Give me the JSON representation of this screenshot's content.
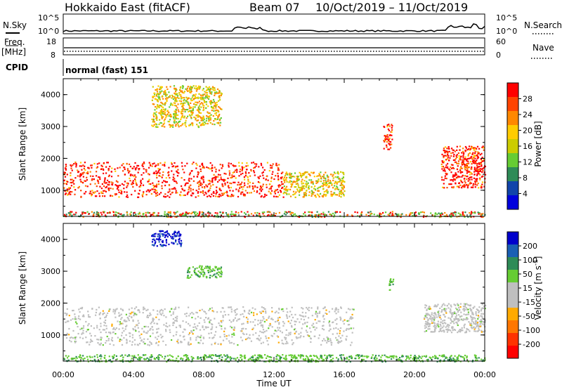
{
  "header": {
    "station": "Hokkaido East (fitACF)",
    "beam": "Beam 07",
    "dates": "10/Oct/2019 – 11/Oct/2019"
  },
  "status": {
    "nsky_label": "N.Sky",
    "nsky_ticks": [
      "10^5",
      "10^0"
    ],
    "nsearch_label": "N.Search",
    "nsearch_ticks": [
      "10^5",
      "10^0"
    ],
    "freq_label": "Freq.",
    "freq_unit": "[MHz]",
    "freq_ticks": [
      "18",
      "8"
    ],
    "nave_label": "Nave",
    "nave_ticks": [
      "60",
      "0"
    ],
    "cpid_label": "CPID",
    "cpid_value": "normal (fast) 151"
  },
  "colors": {
    "power_scale": [
      "#0000dd",
      "#1144aa",
      "#2e8b57",
      "#66cc33",
      "#cccc00",
      "#ffcc00",
      "#ff8800",
      "#ff4400",
      "#ff0000"
    ],
    "velocity_scale": [
      "#0000cc",
      "#1a5fb4",
      "#2e8b57",
      "#66cc33",
      "#bfbfbf",
      "#bfbfbf",
      "#ffaa00",
      "#ff7700",
      "#ff3300",
      "#ff0000"
    ]
  },
  "chart_data": [
    {
      "type": "heatmap",
      "title": "",
      "xlabel": "",
      "ylabel": "Slant Range [km]",
      "colorbar_label": "Power [dB]",
      "colorbar_ticks": [
        "28",
        "24",
        "20",
        "16",
        "12",
        "8",
        "4"
      ],
      "x_ticks": [
        "00:00",
        "04:00",
        "08:00",
        "12:00",
        "16:00",
        "20:00",
        "00:00"
      ],
      "y_ticks": [
        "4000",
        "3000",
        "2000",
        "1000"
      ],
      "xlim_hours": [
        0,
        24
      ],
      "ylim_km": [
        180,
        4500
      ],
      "regions": [
        {
          "x": [
            0,
            12.5
          ],
          "y": [
            800,
            1900
          ],
          "level": "high"
        },
        {
          "x": [
            12.5,
            16.0
          ],
          "y": [
            800,
            1600
          ],
          "level": "mid"
        },
        {
          "x": [
            21.5,
            24.0
          ],
          "y": [
            1100,
            2400
          ],
          "level": "high"
        },
        {
          "x": [
            5.0,
            9.0
          ],
          "y": [
            3000,
            4300
          ],
          "level": "mid"
        },
        {
          "x": [
            18.2,
            18.7
          ],
          "y": [
            2300,
            3100
          ],
          "level": "high"
        },
        {
          "x": [
            0,
            24
          ],
          "y": [
            180,
            350
          ],
          "level": "low"
        }
      ]
    },
    {
      "type": "heatmap",
      "title": "",
      "xlabel": "Time UT",
      "ylabel": "Slant Range [km]",
      "colorbar_label": "Velocity [m s^-1]",
      "colorbar_ticks": [
        "200",
        "100",
        "50",
        "15",
        "-15",
        "-50",
        "-100",
        "-200"
      ],
      "x_ticks": [
        "00:00",
        "04:00",
        "08:00",
        "12:00",
        "16:00",
        "20:00",
        "00:00"
      ],
      "y_ticks": [
        "4000",
        "3000",
        "2000",
        "1000"
      ],
      "xlim_hours": [
        0,
        24
      ],
      "ylim_km": [
        180,
        4500
      ],
      "regions": [
        {
          "x": [
            0,
            16.5
          ],
          "y": [
            700,
            1900
          ],
          "velocity": 0
        },
        {
          "x": [
            20.5,
            24
          ],
          "y": [
            1100,
            2000
          ],
          "velocity": 0
        },
        {
          "x": [
            5.0,
            6.7
          ],
          "y": [
            3800,
            4300
          ],
          "velocity": 200
        },
        {
          "x": [
            7.0,
            9.0
          ],
          "y": [
            2800,
            3200
          ],
          "velocity": 40
        },
        {
          "x": [
            18.5,
            18.8
          ],
          "y": [
            2400,
            2800
          ],
          "velocity": 40
        },
        {
          "x": [
            0,
            24
          ],
          "y": [
            180,
            400
          ],
          "velocity": 30
        }
      ]
    }
  ]
}
